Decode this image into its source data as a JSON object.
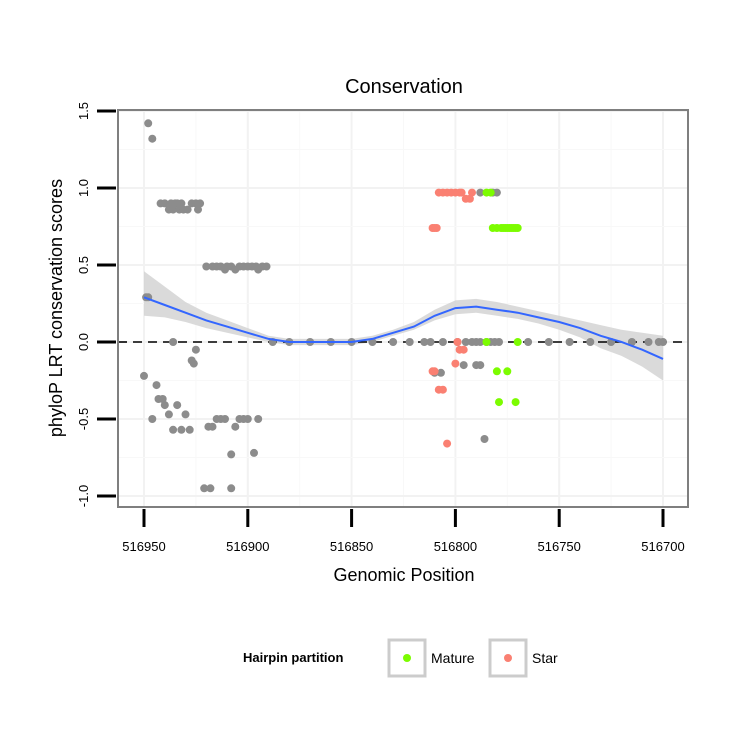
{
  "chart_data": {
    "type": "scatter",
    "title": "Conservation",
    "xlabel": "Genomic Position",
    "ylabel": "phyloP LRT conservation scores",
    "xlim": [
      516700,
      516950
    ],
    "x_reversed": true,
    "ylim": [
      -1.0,
      1.5
    ],
    "x_ticks": [
      516950,
      516900,
      516850,
      516800,
      516750,
      516700
    ],
    "y_ticks": [
      -1.0,
      -0.5,
      0.0,
      0.5,
      1.0,
      1.5
    ],
    "x_tick_labels": [
      "516950",
      "516900",
      "516850",
      "516800",
      "516750",
      "516700"
    ],
    "y_tick_labels": [
      "-1.0",
      "-0.5",
      "0.0",
      "0.5",
      "1.0",
      "1.5"
    ],
    "grid": true,
    "reference_line": {
      "y": 0,
      "style": "dashed",
      "color": "#000000"
    },
    "legend": {
      "title": "Hairpin partition",
      "position": "bottom",
      "entries": [
        {
          "name": "Mature",
          "color": "#7CFC00"
        },
        {
          "name": "Star",
          "color": "#FA8072"
        }
      ]
    },
    "colors": {
      "other": "#8C8C8C",
      "Mature": "#7CFC00",
      "Star": "#FA8072",
      "smooth": "#3366FF",
      "ribbon": "#D3D3D3"
    },
    "series": [
      {
        "name": "Other",
        "color": "#8C8C8C",
        "points": [
          [
            516948,
            1.42
          ],
          [
            516946,
            1.32
          ],
          [
            516942,
            0.9
          ],
          [
            516940,
            0.9
          ],
          [
            516938,
            0.86
          ],
          [
            516937,
            0.9
          ],
          [
            516936,
            0.86
          ],
          [
            516935,
            0.9
          ],
          [
            516934,
            0.9
          ],
          [
            516933,
            0.86
          ],
          [
            516932,
            0.9
          ],
          [
            516931,
            0.86
          ],
          [
            516929,
            0.86
          ],
          [
            516927,
            0.9
          ],
          [
            516925,
            0.9
          ],
          [
            516924,
            0.86
          ],
          [
            516923,
            0.9
          ],
          [
            516920,
            0.49
          ],
          [
            516917,
            0.49
          ],
          [
            516915,
            0.49
          ],
          [
            516913,
            0.49
          ],
          [
            516911,
            0.47
          ],
          [
            516910,
            0.49
          ],
          [
            516908,
            0.49
          ],
          [
            516906,
            0.47
          ],
          [
            516904,
            0.49
          ],
          [
            516902,
            0.49
          ],
          [
            516900,
            0.49
          ],
          [
            516898,
            0.49
          ],
          [
            516896,
            0.49
          ],
          [
            516895,
            0.47
          ],
          [
            516893,
            0.49
          ],
          [
            516891,
            0.49
          ],
          [
            516949,
            0.29
          ],
          [
            516948,
            0.29
          ],
          [
            516936,
            0.0
          ],
          [
            516950,
            -0.22
          ],
          [
            516946,
            -0.5
          ],
          [
            516944,
            -0.28
          ],
          [
            516943,
            -0.37
          ],
          [
            516941,
            -0.37
          ],
          [
            516940,
            -0.41
          ],
          [
            516938,
            -0.47
          ],
          [
            516936,
            -0.57
          ],
          [
            516934,
            -0.41
          ],
          [
            516932,
            -0.57
          ],
          [
            516930,
            -0.47
          ],
          [
            516928,
            -0.57
          ],
          [
            516925,
            -0.05
          ],
          [
            516926,
            -0.14
          ],
          [
            516927,
            -0.12
          ],
          [
            516919,
            -0.55
          ],
          [
            516917,
            -0.55
          ],
          [
            516915,
            -0.5
          ],
          [
            516913,
            -0.5
          ],
          [
            516911,
            -0.5
          ],
          [
            516908,
            -0.73
          ],
          [
            516906,
            -0.55
          ],
          [
            516904,
            -0.5
          ],
          [
            516902,
            -0.5
          ],
          [
            516900,
            -0.5
          ],
          [
            516897,
            -0.72
          ],
          [
            516895,
            -0.5
          ],
          [
            516921,
            -0.95
          ],
          [
            516918,
            -0.95
          ],
          [
            516908,
            -0.95
          ],
          [
            516888,
            0.0
          ],
          [
            516880,
            0.0
          ],
          [
            516870,
            0.0
          ],
          [
            516860,
            0.0
          ],
          [
            516850,
            0.0
          ],
          [
            516840,
            0.0
          ],
          [
            516830,
            0.0
          ],
          [
            516822,
            0.0
          ],
          [
            516815,
            0.0
          ],
          [
            516812,
            0.0
          ],
          [
            516806,
            0.0
          ],
          [
            516799,
            0.0
          ],
          [
            516795,
            0.0
          ],
          [
            516790,
            0.0
          ],
          [
            516788,
            0.0
          ],
          [
            516785,
            0.0
          ],
          [
            516783,
            0.0
          ],
          [
            516781,
            0.0
          ],
          [
            516779,
            0.0
          ],
          [
            516810,
            -0.2
          ],
          [
            516807,
            -0.2
          ],
          [
            516790,
            -0.15
          ],
          [
            516788,
            -0.15
          ],
          [
            516792,
            0.0
          ],
          [
            516796,
            -0.15
          ],
          [
            516786,
            -0.63
          ],
          [
            516788,
            0.97
          ],
          [
            516782,
            0.97
          ],
          [
            516780,
            0.97
          ],
          [
            516765,
            0.0
          ],
          [
            516755,
            0.0
          ],
          [
            516745,
            0.0
          ],
          [
            516735,
            0.0
          ],
          [
            516725,
            0.0
          ],
          [
            516715,
            0.0
          ],
          [
            516707,
            0.0
          ],
          [
            516702,
            0.0
          ],
          [
            516700,
            0.0
          ]
        ]
      },
      {
        "name": "Star",
        "color": "#FA8072",
        "points": [
          [
            516811,
            0.74
          ],
          [
            516810,
            0.74
          ],
          [
            516809,
            0.74
          ],
          [
            516808,
            0.97
          ],
          [
            516806,
            0.97
          ],
          [
            516804,
            0.97
          ],
          [
            516802,
            0.97
          ],
          [
            516800,
            0.97
          ],
          [
            516798,
            0.97
          ],
          [
            516797,
            0.97
          ],
          [
            516795,
            0.93
          ],
          [
            516793,
            0.93
          ],
          [
            516792,
            0.97
          ],
          [
            516811,
            -0.19
          ],
          [
            516810,
            -0.19
          ],
          [
            516808,
            -0.31
          ],
          [
            516806,
            -0.31
          ],
          [
            516804,
            -0.66
          ],
          [
            516800,
            -0.14
          ],
          [
            516798,
            -0.05
          ],
          [
            516799,
            0.0
          ],
          [
            516796,
            -0.05
          ]
        ]
      },
      {
        "name": "Mature",
        "color": "#7CFC00",
        "points": [
          [
            516785,
            0.97
          ],
          [
            516783,
            0.97
          ],
          [
            516782,
            0.74
          ],
          [
            516780,
            0.74
          ],
          [
            516778,
            0.74
          ],
          [
            516777,
            0.74
          ],
          [
            516776,
            0.74
          ],
          [
            516775,
            0.74
          ],
          [
            516774,
            0.74
          ],
          [
            516773,
            0.74
          ],
          [
            516772,
            0.74
          ],
          [
            516771,
            0.74
          ],
          [
            516770,
            0.74
          ],
          [
            516785,
            0.0
          ],
          [
            516770,
            0.0
          ],
          [
            516780,
            -0.19
          ],
          [
            516775,
            -0.19
          ],
          [
            516779,
            -0.39
          ],
          [
            516771,
            -0.39
          ]
        ]
      }
    ],
    "smooth_line": {
      "name": "loess fit",
      "color": "#3366FF",
      "x": [
        516950,
        516940,
        516930,
        516920,
        516910,
        516900,
        516890,
        516880,
        516870,
        516860,
        516850,
        516840,
        516830,
        516820,
        516810,
        516800,
        516790,
        516780,
        516770,
        516760,
        516750,
        516740,
        516730,
        516720,
        516710,
        516700
      ],
      "y": [
        0.29,
        0.24,
        0.19,
        0.14,
        0.1,
        0.06,
        0.02,
        0.0,
        0.0,
        0.0,
        0.0,
        0.02,
        0.06,
        0.1,
        0.17,
        0.22,
        0.23,
        0.21,
        0.19,
        0.16,
        0.13,
        0.09,
        0.04,
        0.0,
        -0.05,
        -0.11
      ],
      "ci_lower": [
        0.17,
        0.16,
        0.13,
        0.09,
        0.06,
        0.03,
        0.0,
        -0.02,
        -0.02,
        -0.02,
        -0.02,
        0.0,
        0.04,
        0.08,
        0.14,
        0.18,
        0.19,
        0.17,
        0.15,
        0.12,
        0.08,
        0.03,
        -0.04,
        -0.09,
        -0.16,
        -0.25
      ],
      "ci_upper": [
        0.46,
        0.36,
        0.26,
        0.19,
        0.14,
        0.09,
        0.04,
        0.02,
        0.02,
        0.02,
        0.02,
        0.04,
        0.08,
        0.13,
        0.21,
        0.27,
        0.28,
        0.26,
        0.23,
        0.2,
        0.17,
        0.14,
        0.11,
        0.08,
        0.06,
        0.04
      ]
    }
  }
}
